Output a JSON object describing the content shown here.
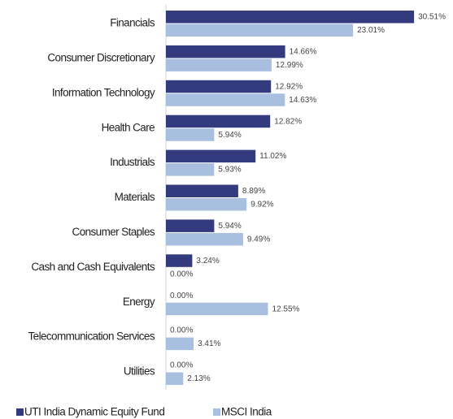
{
  "chart_data": {
    "type": "hbar",
    "categories": [
      "Financials",
      "Consumer Discretionary",
      "Information Technology",
      "Health Care",
      "Industrials",
      "Materials",
      "Consumer Staples",
      "Cash and Cash Equivalents",
      "Energy",
      "Telecommunication Services",
      "Utilities"
    ],
    "series": [
      {
        "name": "UTI India Dynamic Equity Fund",
        "color": "#333a7e",
        "values": [
          30.51,
          14.66,
          12.92,
          12.82,
          11.02,
          8.89,
          5.94,
          3.24,
          0,
          0,
          0
        ],
        "value_labels": [
          "30.51%",
          "14.66%",
          "12.92%",
          "12.82%",
          "11.02%",
          "8.89%",
          "5.94%",
          "3.24%",
          "0.00%",
          "0.00%",
          "0.00%"
        ]
      },
      {
        "name": "MSCI India",
        "color": "#a9bfe0",
        "values": [
          23.01,
          12.99,
          14.63,
          5.94,
          5.93,
          9.92,
          9.49,
          0,
          12.55,
          3.41,
          2.13
        ],
        "value_labels": [
          "23.01%",
          "12.99%",
          "14.63%",
          "5.94%",
          "5.93%",
          "9.92%",
          "9.49%",
          "0.00%",
          "12.55%",
          "3.41%",
          "2.13%"
        ]
      }
    ],
    "xlim": [
      0,
      35
    ]
  }
}
